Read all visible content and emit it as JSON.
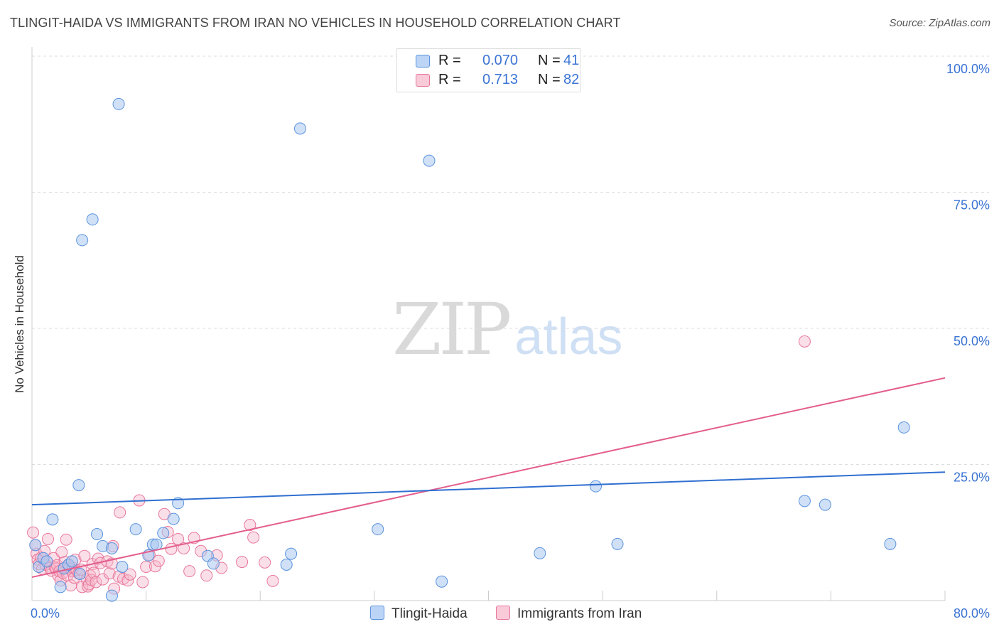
{
  "header": {
    "title": "TLINGIT-HAIDA VS IMMIGRANTS FROM IRAN NO VEHICLES IN HOUSEHOLD CORRELATION CHART",
    "source": "Source: ZipAtlas.com"
  },
  "watermark": {
    "zip": "ZIP",
    "atlas": "atlas"
  },
  "legend": {
    "rows": [
      {
        "r_label": "R =",
        "r_value": "0.070",
        "n_label": "N =",
        "n_value": "41",
        "color": "#a9c8f0"
      },
      {
        "r_label": "R =",
        "r_value": "0.713",
        "n_label": "N =",
        "n_value": "82",
        "color": "#f6b8cb"
      }
    ]
  },
  "bottom_legend": {
    "items": [
      {
        "label": "Tlingit-Haida",
        "color": "#a9c8f0"
      },
      {
        "label": "Immigrants from Iran",
        "color": "#f6b8cb"
      }
    ]
  },
  "colors": {
    "blue_fill": "#a9c8f0",
    "blue_stroke": "#5b93de",
    "blue_line": "#2f6fd0",
    "pink_fill": "#f6b8cb",
    "pink_stroke": "#e8779c",
    "pink_line": "#e35d8d",
    "tick_label": "#3b74d4",
    "grid": "#dddddd"
  },
  "chart_data": {
    "type": "scatter",
    "title": "TLINGIT-HAIDA VS IMMIGRANTS FROM IRAN NO VEHICLES IN HOUSEHOLD CORRELATION CHART",
    "xlabel": "",
    "ylabel": "No Vehicles in Household",
    "xlim": [
      0,
      80
    ],
    "ylim": [
      0,
      100
    ],
    "x_tick_labels": [
      {
        "value": 0,
        "label": "0.0%"
      },
      {
        "value": 80,
        "label": "80.0%"
      }
    ],
    "y_tick_labels": [
      {
        "value": 25,
        "label": "25.0%"
      },
      {
        "value": 50,
        "label": "50.0%"
      },
      {
        "value": 75,
        "label": "75.0%"
      },
      {
        "value": 100,
        "label": "100.0%"
      }
    ],
    "series": [
      {
        "name": "Tlingit-Haida",
        "r": 0.07,
        "n": 41,
        "trend": {
          "x": [
            0,
            80
          ],
          "y": [
            17.6,
            23.6
          ]
        },
        "points": [
          [
            0.3,
            10.2
          ],
          [
            0.6,
            6.2
          ],
          [
            1.0,
            7.8
          ],
          [
            1.3,
            7.2
          ],
          [
            1.8,
            14.9
          ],
          [
            2.5,
            2.5
          ],
          [
            2.8,
            5.9
          ],
          [
            3.2,
            6.6
          ],
          [
            3.5,
            7.2
          ],
          [
            4.2,
            4.9
          ],
          [
            4.1,
            21.2
          ],
          [
            4.4,
            66.2
          ],
          [
            5.3,
            70.0
          ],
          [
            5.7,
            12.2
          ],
          [
            6.2,
            10.0
          ],
          [
            7.0,
            9.6
          ],
          [
            7.0,
            0.9
          ],
          [
            7.6,
            91.2
          ],
          [
            7.9,
            6.2
          ],
          [
            9.1,
            13.1
          ],
          [
            10.2,
            8.3
          ],
          [
            10.6,
            10.3
          ],
          [
            10.9,
            10.3
          ],
          [
            11.5,
            12.4
          ],
          [
            12.4,
            15.0
          ],
          [
            12.8,
            17.9
          ],
          [
            15.4,
            8.2
          ],
          [
            15.9,
            6.8
          ],
          [
            22.3,
            6.6
          ],
          [
            22.7,
            8.6
          ],
          [
            23.5,
            86.7
          ],
          [
            30.3,
            13.1
          ],
          [
            34.8,
            80.8
          ],
          [
            35.9,
            3.5
          ],
          [
            44.5,
            8.7
          ],
          [
            49.4,
            21.0
          ],
          [
            51.3,
            10.4
          ],
          [
            67.7,
            18.3
          ],
          [
            69.5,
            17.6
          ],
          [
            75.2,
            10.4
          ],
          [
            76.4,
            31.8
          ]
        ]
      },
      {
        "name": "Immigrants from Iran",
        "r": 0.713,
        "n": 82,
        "trend": {
          "x": [
            0,
            80
          ],
          "y": [
            4.3,
            40.9
          ]
        },
        "points": [
          [
            0.1,
            12.5
          ],
          [
            0.3,
            10.2
          ],
          [
            0.4,
            8.6
          ],
          [
            0.5,
            7.5
          ],
          [
            0.6,
            6.7
          ],
          [
            0.8,
            7.9
          ],
          [
            0.9,
            5.8
          ],
          [
            1.1,
            9.1
          ],
          [
            1.2,
            6.6
          ],
          [
            1.3,
            7.2
          ],
          [
            1.4,
            11.3
          ],
          [
            1.6,
            6.0
          ],
          [
            1.7,
            5.5
          ],
          [
            1.9,
            7.8
          ],
          [
            2.0,
            6.1
          ],
          [
            2.1,
            5.9
          ],
          [
            2.2,
            6.5
          ],
          [
            2.3,
            4.6
          ],
          [
            2.4,
            5.4
          ],
          [
            2.5,
            3.7
          ],
          [
            2.6,
            8.9
          ],
          [
            2.7,
            5.1
          ],
          [
            2.8,
            6.0
          ],
          [
            2.9,
            7.1
          ],
          [
            3.0,
            11.2
          ],
          [
            3.1,
            4.6
          ],
          [
            3.2,
            6.5
          ],
          [
            3.3,
            5.9
          ],
          [
            3.4,
            2.8
          ],
          [
            3.5,
            5.4
          ],
          [
            3.6,
            6.0
          ],
          [
            3.7,
            4.2
          ],
          [
            3.8,
            7.5
          ],
          [
            3.9,
            5.6
          ],
          [
            4.1,
            5.0
          ],
          [
            4.3,
            5.7
          ],
          [
            4.4,
            2.5
          ],
          [
            4.6,
            8.2
          ],
          [
            4.8,
            3.9
          ],
          [
            4.9,
            2.6
          ],
          [
            5.0,
            3.0
          ],
          [
            5.1,
            4.6
          ],
          [
            5.2,
            3.8
          ],
          [
            5.3,
            6.7
          ],
          [
            5.4,
            5.1
          ],
          [
            5.6,
            3.4
          ],
          [
            5.8,
            7.7
          ],
          [
            6.0,
            6.9
          ],
          [
            6.2,
            3.9
          ],
          [
            6.6,
            7.2
          ],
          [
            6.8,
            5.0
          ],
          [
            7.0,
            6.8
          ],
          [
            7.1,
            10.0
          ],
          [
            7.2,
            2.2
          ],
          [
            7.6,
            4.4
          ],
          [
            7.7,
            16.2
          ],
          [
            8.0,
            4.0
          ],
          [
            8.4,
            3.7
          ],
          [
            8.6,
            4.8
          ],
          [
            9.4,
            18.4
          ],
          [
            9.7,
            3.4
          ],
          [
            10.0,
            6.2
          ],
          [
            10.3,
            8.4
          ],
          [
            10.8,
            6.3
          ],
          [
            11.1,
            7.3
          ],
          [
            11.6,
            15.9
          ],
          [
            11.9,
            12.6
          ],
          [
            12.2,
            9.5
          ],
          [
            12.8,
            11.3
          ],
          [
            13.3,
            9.6
          ],
          [
            13.8,
            5.4
          ],
          [
            14.2,
            11.5
          ],
          [
            14.8,
            9.1
          ],
          [
            15.3,
            4.6
          ],
          [
            16.2,
            8.3
          ],
          [
            16.6,
            6.0
          ],
          [
            18.4,
            7.1
          ],
          [
            19.1,
            13.9
          ],
          [
            19.4,
            11.6
          ],
          [
            20.4,
            7.0
          ],
          [
            21.1,
            3.6
          ],
          [
            67.7,
            47.6
          ]
        ]
      }
    ]
  }
}
